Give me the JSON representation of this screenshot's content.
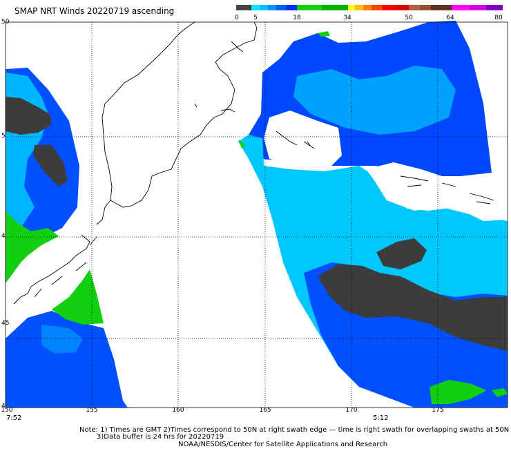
{
  "title": "SMAP NRT Winds 20220719 ascending",
  "colorbar": {
    "labels": [
      "0",
      "5",
      "18",
      "34",
      "50",
      "64",
      "80"
    ],
    "colors": [
      "#3a3a3a",
      "#6a6a6a",
      "#9a9a9a",
      "#00e0ff",
      "#00b0ff",
      "#0070ff",
      "#0030ff",
      "#10d010",
      "#00b000",
      "#ffff00",
      "#ffc000",
      "#ff8000",
      "#ff4000",
      "#ff0000",
      "#d00000",
      "#a05030",
      "#805030",
      "#602010",
      "#ff00ff",
      "#c000d0",
      "#8000c0"
    ]
  },
  "lat_labels": [
    "50",
    "5",
    "4",
    "45",
    "4"
  ],
  "lon_labels": [
    "150",
    "155",
    "160",
    "165",
    "170",
    "175"
  ],
  "times": {
    "left": "7:52",
    "right": "5:12"
  },
  "notes": {
    "line1": "Note: 1) Times are GMT 2)Times correspond to 50N at right swath edge — time is right swath for overlapping swaths at 50N",
    "line2": "3)Data buffer is 24 hrs for 20220719",
    "line3": "NOAA/NESDIS/Center for Satellite Applications and Research"
  }
}
